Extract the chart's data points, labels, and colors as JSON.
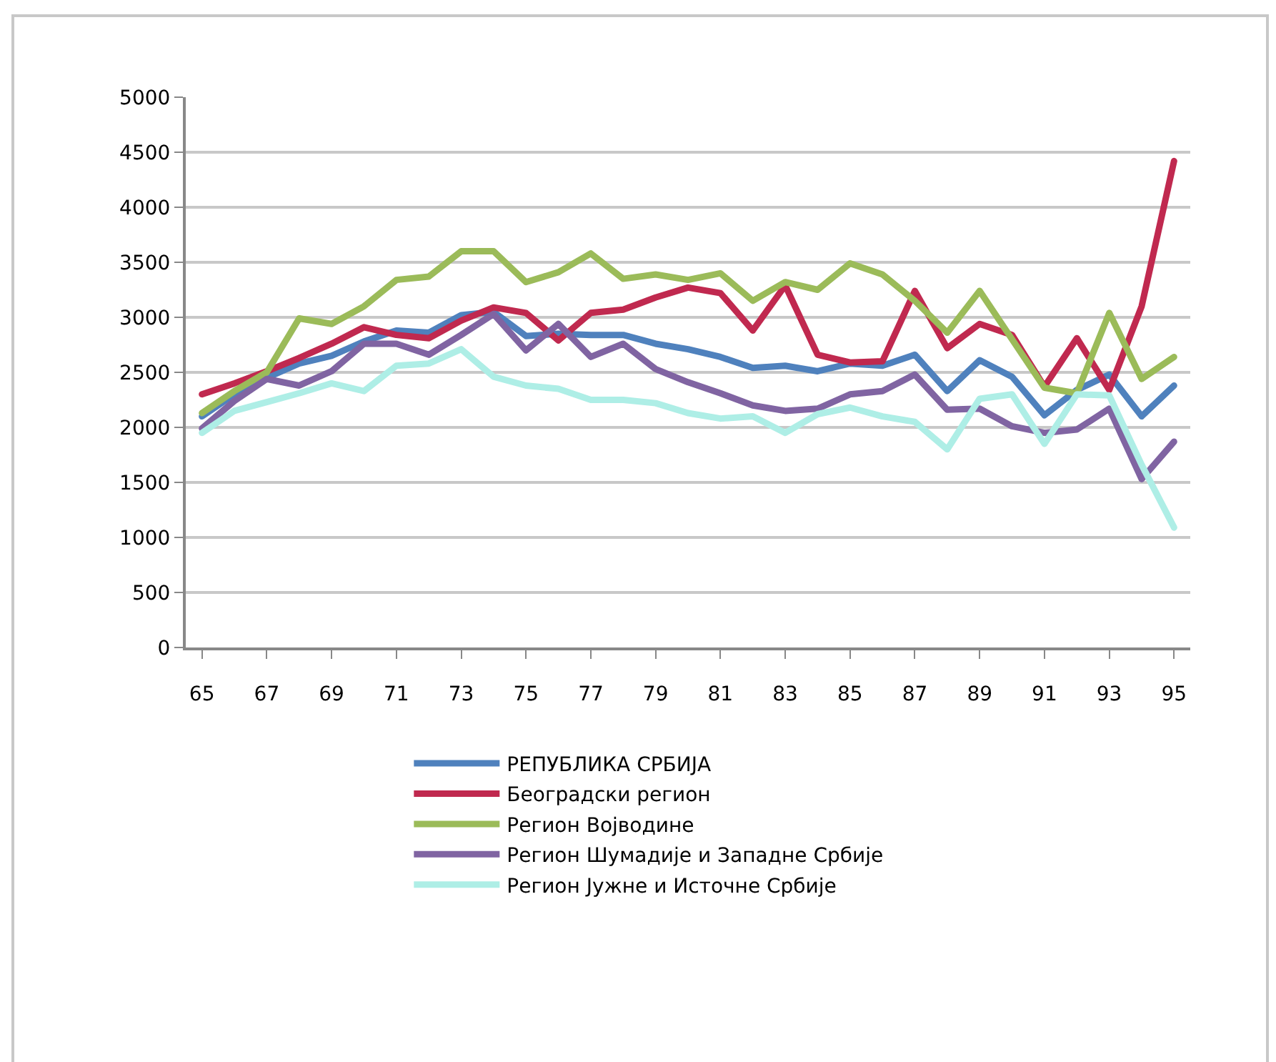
{
  "chart_data": {
    "type": "line",
    "categories": [
      "65",
      null,
      "67",
      null,
      "69",
      null,
      "71",
      null,
      "73",
      null,
      "75",
      null,
      "77",
      null,
      "79",
      null,
      "81",
      null,
      "83",
      null,
      "85",
      null,
      "87",
      null,
      "89",
      null,
      "91",
      null,
      "93",
      null,
      "95"
    ],
    "series": [
      {
        "name": "РЕПУБЛИКА СРБИЈА",
        "color": "#4f81bd",
        "values": [
          2100,
          2300,
          2450,
          2580,
          2650,
          2780,
          2880,
          2860,
          3020,
          3050,
          2830,
          2850,
          2840,
          2840,
          2760,
          2710,
          2640,
          2540,
          2560,
          2510,
          2580,
          2560,
          2660,
          2330,
          2610,
          2460,
          2110,
          2340,
          2480,
          2100,
          2380
        ]
      },
      {
        "name": "Београдски регион",
        "color": "#c0294f",
        "values": [
          2300,
          2400,
          2510,
          2630,
          2760,
          2910,
          2840,
          2810,
          2970,
          3090,
          3040,
          2790,
          3040,
          3070,
          3180,
          3270,
          3220,
          2880,
          3290,
          2660,
          2590,
          2600,
          3240,
          2720,
          2940,
          2840,
          2370,
          2810,
          2340,
          3100,
          4420
        ]
      },
      {
        "name": "Регион Војводине",
        "color": "#9bbb59",
        "values": [
          2130,
          2330,
          2500,
          2990,
          2940,
          3100,
          3340,
          3370,
          3600,
          3600,
          3320,
          3410,
          3580,
          3350,
          3390,
          3340,
          3400,
          3150,
          3320,
          3250,
          3490,
          3390,
          3150,
          2860,
          3240,
          2800,
          2360,
          2310,
          3040,
          2440,
          2640
        ]
      },
      {
        "name": "Регион Шумадије и Западне Србије",
        "color": "#8064a2",
        "values": [
          1990,
          2240,
          2440,
          2380,
          2510,
          2760,
          2760,
          2660,
          2840,
          3030,
          2700,
          2940,
          2640,
          2760,
          2530,
          2410,
          2310,
          2200,
          2150,
          2170,
          2300,
          2330,
          2480,
          2160,
          2170,
          2010,
          1950,
          1980,
          2170,
          1530,
          1870
        ]
      },
      {
        "name": "Регион Јужне и Источне Србије",
        "color": "#aeeee6",
        "values": [
          1950,
          2150,
          2230,
          2310,
          2400,
          2330,
          2560,
          2580,
          2710,
          2460,
          2380,
          2350,
          2250,
          2250,
          2220,
          2130,
          2080,
          2100,
          1950,
          2120,
          2180,
          2100,
          2050,
          1800,
          2260,
          2300,
          1850,
          2300,
          2290,
          1660,
          1090
        ]
      }
    ],
    "ylim": [
      0,
      5000
    ],
    "yticks": [
      0,
      500,
      1000,
      1500,
      2000,
      2500,
      3000,
      3500,
      4000,
      4500,
      5000
    ],
    "grid": "y",
    "legend": "bottom",
    "marker": "none",
    "line_style": "solid"
  }
}
